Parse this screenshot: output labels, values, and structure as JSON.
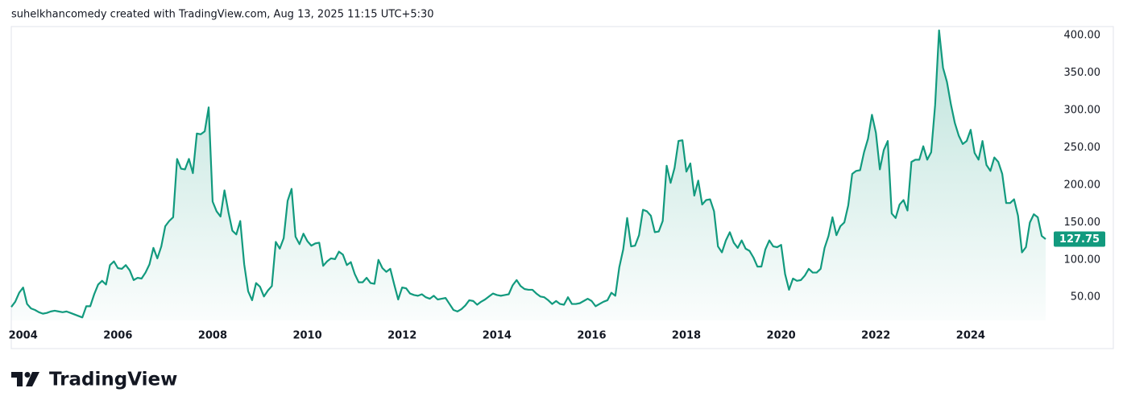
{
  "chart_data": {
    "type": "area",
    "title": "suhelkhancomedy created with TradingView.com, Aug 13, 2025 11:15 UTC+5:30",
    "color": "#129a7e",
    "categories": [
      null,
      null,
      null,
      "2004",
      null,
      null,
      null,
      null,
      null,
      null,
      null,
      null,
      null,
      null,
      null,
      null,
      null,
      null,
      null,
      null,
      null,
      null,
      null,
      null,
      null,
      null,
      null,
      "2006",
      null,
      null,
      null,
      null,
      null,
      null,
      null,
      null,
      null,
      null,
      null,
      null,
      null,
      null,
      null,
      null,
      null,
      null,
      null,
      null,
      null,
      null,
      null,
      "2008",
      null,
      null,
      null,
      null,
      null,
      null,
      null,
      null,
      null,
      null,
      null,
      null,
      null,
      null,
      null,
      null,
      null,
      null,
      null,
      null,
      null,
      null,
      null,
      "2010",
      null,
      null,
      null,
      null,
      null,
      null,
      null,
      null,
      null,
      null,
      null,
      null,
      null,
      null,
      null,
      null,
      null,
      null,
      null,
      null,
      null,
      null,
      null,
      "2012",
      null,
      null,
      null,
      null,
      null,
      null,
      null,
      null,
      null,
      null,
      null,
      null,
      null,
      null,
      null,
      null,
      null,
      null,
      null,
      null,
      null,
      null,
      null,
      "2014",
      null,
      null,
      null,
      null,
      null,
      null,
      null,
      null,
      null,
      null,
      null,
      null,
      null,
      null,
      null,
      null,
      null,
      null,
      null,
      null,
      null,
      null,
      null,
      "2016",
      null,
      null,
      null,
      null,
      null,
      null,
      null,
      null,
      null,
      null,
      null,
      null,
      null,
      null,
      null,
      null,
      null,
      null,
      null,
      null,
      null,
      null,
      null,
      "2018",
      null,
      null,
      null,
      null,
      null,
      null,
      null,
      null,
      null,
      null,
      null,
      null,
      null,
      null,
      null,
      null,
      null,
      null,
      null,
      null,
      null,
      null,
      null,
      "2020",
      null,
      null,
      null,
      null,
      null,
      null,
      null,
      null,
      null,
      null,
      null,
      null,
      null,
      null,
      null,
      null,
      null,
      null,
      null,
      null,
      null,
      null,
      null,
      "2022",
      null,
      null,
      null,
      null,
      null,
      null,
      null,
      null,
      null,
      null,
      null,
      null,
      null,
      null,
      null,
      null,
      null,
      null,
      null,
      null,
      null,
      null,
      null,
      "2024",
      null,
      null,
      null,
      null,
      null,
      null,
      null,
      null,
      null,
      null,
      null,
      null,
      null,
      null,
      null,
      null,
      null,
      null,
      null
    ],
    "values": [
      37,
      44,
      56,
      63,
      41,
      35,
      33,
      30,
      28,
      29,
      31,
      32,
      31,
      30,
      31,
      29,
      27,
      25,
      23,
      38,
      38,
      54,
      67,
      72,
      67,
      93,
      98,
      89,
      88,
      93,
      86,
      73,
      76,
      75,
      83,
      94,
      116,
      102,
      118,
      145,
      152,
      157,
      235,
      222,
      221,
      235,
      216,
      269,
      268,
      272,
      304,
      178,
      165,
      158,
      193,
      164,
      139,
      134,
      152,
      94,
      58,
      46,
      69,
      64,
      51,
      59,
      65,
      124,
      115,
      129,
      179,
      195,
      131,
      121,
      135,
      125,
      119,
      122,
      123,
      92,
      98,
      102,
      101,
      111,
      107,
      93,
      97,
      81,
      70,
      70,
      76,
      69,
      68,
      100,
      89,
      84,
      88,
      67,
      47,
      63,
      62,
      55,
      53,
      52,
      54,
      50,
      48,
      52,
      47,
      48,
      49,
      41,
      33,
      31,
      34,
      39,
      46,
      45,
      40,
      44,
      47,
      51,
      55,
      53,
      52,
      53,
      54,
      66,
      73,
      65,
      61,
      60,
      60,
      55,
      51,
      50,
      46,
      41,
      45,
      41,
      40,
      50,
      41,
      41,
      42,
      45,
      48,
      45,
      38,
      41,
      44,
      46,
      56,
      52,
      90,
      114,
      156,
      118,
      119,
      133,
      167,
      165,
      159,
      137,
      138,
      152,
      226,
      203,
      223,
      259,
      260,
      218,
      229,
      186,
      206,
      174,
      180,
      181,
      165,
      118,
      110,
      126,
      137,
      123,
      116,
      126,
      115,
      112,
      103,
      91,
      91,
      114,
      126,
      118,
      117,
      120,
      81,
      60,
      75,
      72,
      73,
      79,
      88,
      83,
      83,
      88,
      116,
      132,
      157,
      133,
      145,
      150,
      173,
      215,
      219,
      220,
      244,
      262,
      294,
      270,
      221,
      247,
      259,
      162,
      156,
      174,
      180,
      166,
      231,
      234,
      234,
      252,
      234,
      244,
      307,
      407,
      357,
      338,
      308,
      283,
      266,
      255,
      259,
      274,
      243,
      234,
      259,
      227,
      219,
      237,
      231,
      215,
      176,
      176,
      181,
      159,
      110,
      117,
      150,
      161,
      157,
      132,
      127.75
    ],
    "ylim": [
      19,
      411
    ],
    "yticks": [
      {
        "value": 50,
        "label": "50.00"
      },
      {
        "value": 100,
        "label": "100.00"
      },
      {
        "value": 150,
        "label": "150.00"
      },
      {
        "value": 200,
        "label": "200.00"
      },
      {
        "value": 250,
        "label": "250.00"
      },
      {
        "value": 300,
        "label": "300.00"
      },
      {
        "value": 350,
        "label": "350.00"
      },
      {
        "value": 400,
        "label": "400.00"
      }
    ],
    "grid": false
  },
  "footer": {
    "brand": "TradingView"
  }
}
